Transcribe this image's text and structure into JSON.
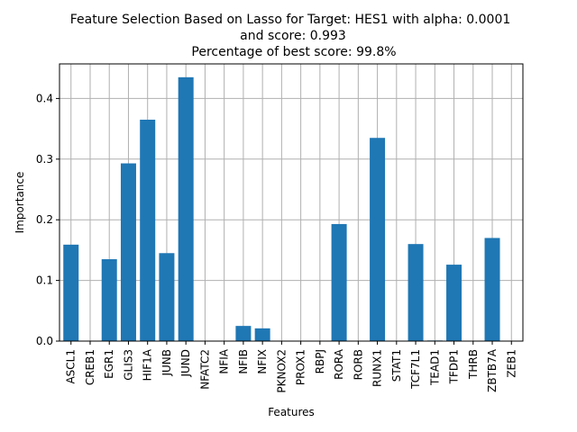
{
  "chart_data": {
    "type": "bar",
    "title": [
      "Feature Selection Based on Lasso for Target: HES1 with alpha: 0.0001",
      "and score: 0.993",
      "Percentage of best score: 99.8%"
    ],
    "xlabel": "Features",
    "ylabel": "Importance",
    "categories": [
      "ASCL1",
      "CREB1",
      "EGR1",
      "GLIS3",
      "HIF1A",
      "JUNB",
      "JUND",
      "NFATC2",
      "NFIA",
      "NFIB",
      "NFIX",
      "PKNOX2",
      "PROX1",
      "RBPJ",
      "RORA",
      "RORB",
      "RUNX1",
      "STAT1",
      "TCF7L1",
      "TEAD1",
      "TFDP1",
      "THRB",
      "ZBTB7A",
      "ZEB1"
    ],
    "values": [
      0.159,
      0.0,
      0.135,
      0.293,
      0.365,
      0.145,
      0.435,
      0.0,
      0.0,
      0.025,
      0.021,
      0.0,
      0.0,
      0.0,
      0.193,
      0.0,
      0.335,
      0.0,
      0.16,
      0.001,
      0.126,
      0.0,
      0.17,
      0.0
    ],
    "ylim": [
      0.0,
      0.457
    ],
    "yticks": [
      0.0,
      0.1,
      0.2,
      0.3,
      0.4
    ],
    "ytick_labels": [
      "0.0",
      "0.1",
      "0.2",
      "0.3",
      "0.4"
    ],
    "grid": true,
    "bar_color": "#1f77b4"
  }
}
